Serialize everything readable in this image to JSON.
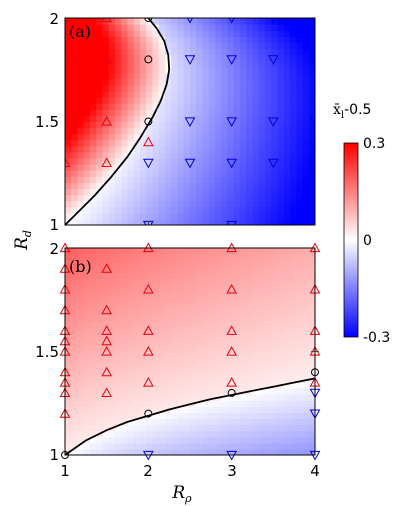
{
  "colors": {
    "positive": "#ff0000",
    "zero": "#ffffff",
    "negative": "#0000ff",
    "marker_up": "#e8000b",
    "marker_down": "#0000e0",
    "marker_boundary": "#000000",
    "boundary_line": "#000000"
  },
  "xaxis": {
    "label": "R_ρ",
    "label_main": "R",
    "label_sub": "ρ",
    "ticks": [
      "1",
      "2",
      "3",
      "4"
    ],
    "range": [
      1,
      4
    ]
  },
  "yaxis": {
    "label": "R_d",
    "label_main": "R",
    "label_sub": "d",
    "ticks": [
      "1",
      "1.5",
      "2"
    ],
    "range": [
      1,
      2
    ]
  },
  "colorbar": {
    "title": "x̄_l-0.5",
    "title_main": "x̄",
    "title_sub": "l",
    "title_rest": "-0.5",
    "tick_labels": [
      "0.3",
      "0",
      "-0.3"
    ],
    "range": [
      -0.3,
      0.3
    ]
  },
  "chart_data": [
    {
      "type": "heatmap",
      "panel_label": "(a)",
      "xlim": [
        1,
        4
      ],
      "ylim": [
        1,
        2
      ],
      "field_description_values": {
        "max": 0.3,
        "min": -0.3
      },
      "boundary_curve": {
        "x": [
          1.0,
          1.15,
          1.35,
          1.55,
          1.75,
          1.9,
          2.05,
          2.15,
          2.22,
          2.25,
          2.24,
          2.19,
          2.1,
          2.0
        ],
        "y": [
          1.0,
          1.06,
          1.14,
          1.23,
          1.33,
          1.42,
          1.52,
          1.6,
          1.68,
          1.75,
          1.82,
          1.89,
          1.95,
          2.0
        ]
      },
      "markers": {
        "up": {
          "x": [
            1,
            1.5,
            2,
            1,
            1.5,
            1,
            1.5,
            1,
            1.5
          ],
          "y": [
            2,
            2,
            1.4,
            1.8,
            1.8,
            1.5,
            1.5,
            1.3,
            1.3
          ]
        },
        "down": {
          "x": [
            2.5,
            3,
            3.5,
            4,
            2.5,
            3,
            3.5,
            4,
            2.5,
            3,
            3.5,
            4,
            2,
            2.5,
            3,
            3.5,
            4,
            2,
            3,
            4
          ],
          "y": [
            2,
            2,
            2,
            2,
            1.8,
            1.8,
            1.8,
            1.8,
            1.5,
            1.5,
            1.5,
            1.5,
            1.3,
            1.3,
            1.3,
            1.3,
            1.3,
            1.0,
            1.0,
            1.0
          ]
        },
        "boundary": {
          "x": [
            2,
            2,
            2
          ],
          "y": [
            2,
            1.8,
            1.5
          ]
        }
      },
      "crosses": {
        "x": [
          1,
          2
        ],
        "y": [
          1.0,
          1.0
        ]
      }
    },
    {
      "type": "heatmap",
      "panel_label": "(b)",
      "xlim": [
        1,
        4
      ],
      "ylim": [
        1,
        2
      ],
      "boundary_curve": {
        "x": [
          1.0,
          1.25,
          1.5,
          1.75,
          2.0,
          2.25,
          2.5,
          2.75,
          3.0,
          3.25,
          3.5,
          3.75,
          4.0
        ],
        "y": [
          1.0,
          1.07,
          1.12,
          1.16,
          1.19,
          1.22,
          1.245,
          1.27,
          1.29,
          1.31,
          1.33,
          1.35,
          1.37
        ]
      },
      "markers": {
        "up": {
          "x": [
            1,
            2,
            3,
            4,
            1,
            1.5,
            1,
            2,
            3,
            4,
            1,
            1.5,
            1,
            1.5,
            2,
            3,
            4,
            1,
            1.5,
            1,
            1.5,
            2,
            3,
            4,
            1,
            1.5,
            1,
            2,
            3,
            4,
            1,
            1.5,
            1
          ],
          "y": [
            2,
            2,
            2,
            2,
            1.9,
            1.9,
            1.8,
            1.8,
            1.8,
            1.8,
            1.7,
            1.7,
            1.6,
            1.6,
            1.6,
            1.6,
            1.6,
            1.55,
            1.55,
            1.5,
            1.5,
            1.5,
            1.5,
            1.5,
            1.4,
            1.4,
            1.35,
            1.35,
            1.35,
            1.35,
            1.3,
            1.3,
            1.2
          ]
        },
        "down": {
          "x": [
            2,
            3,
            4,
            4,
            4
          ],
          "y": [
            1.0,
            1.0,
            1.0,
            1.2,
            1.3
          ]
        },
        "boundary": {
          "x": [
            1,
            2,
            3,
            4
          ],
          "y": [
            1.0,
            1.2,
            1.3,
            1.4
          ]
        }
      },
      "crosses": {
        "x": [
          4
        ],
        "y": [
          1.5
        ]
      }
    }
  ]
}
